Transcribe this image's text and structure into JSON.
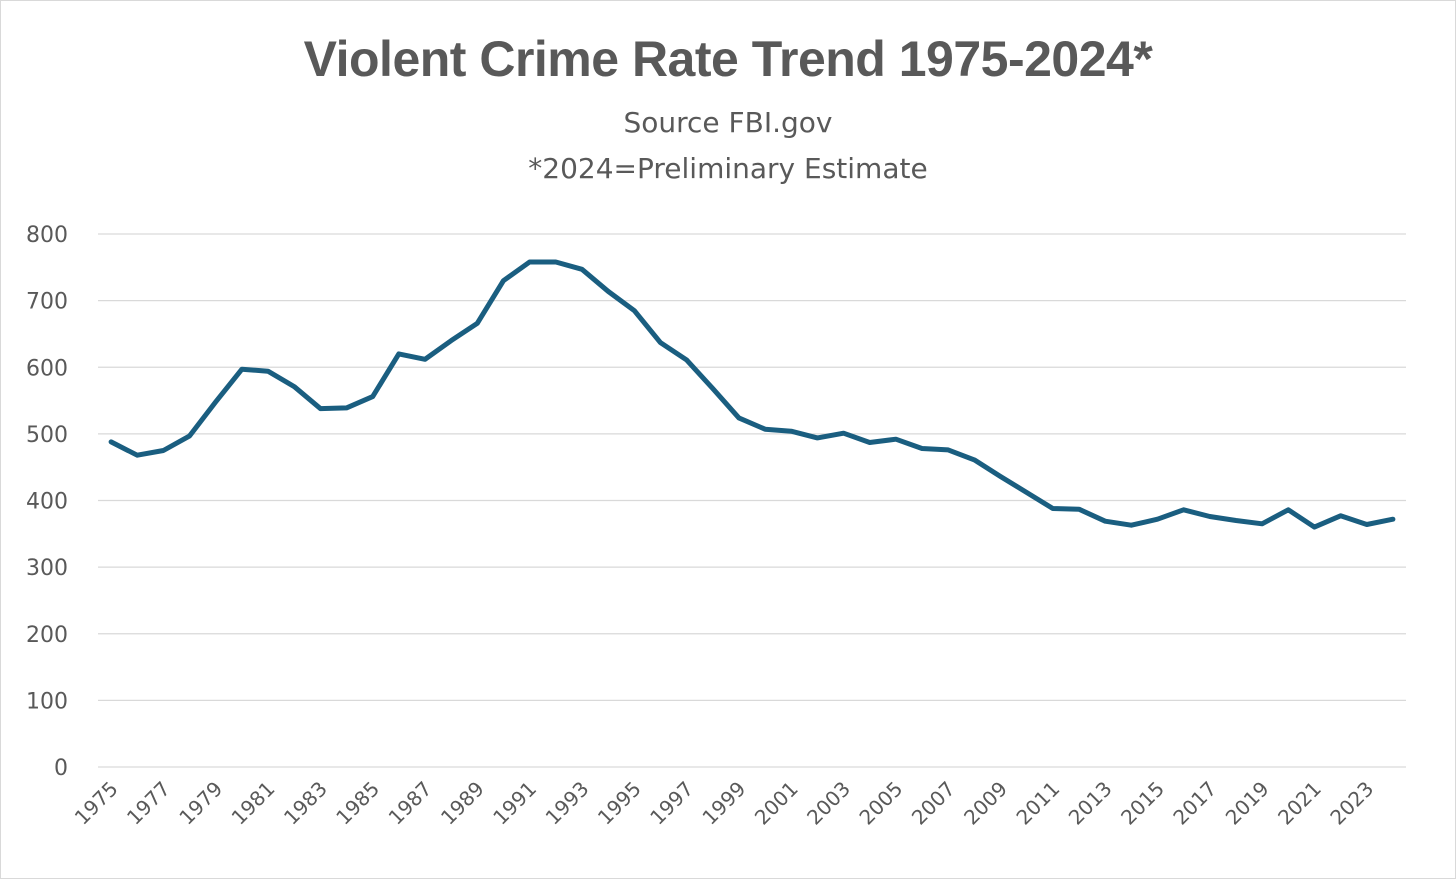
{
  "chart_data": {
    "type": "line",
    "title": "Violent Crime Rate Trend 1975-2024*",
    "subtitle": "Source FBI.gov",
    "note": "*2024=Preliminary Estimate",
    "xlabel": "",
    "ylabel": "",
    "ylim": [
      0,
      800
    ],
    "yticks": [
      0,
      100,
      200,
      300,
      400,
      500,
      600,
      700,
      800
    ],
    "grid": true,
    "line_color": "#1a5e80",
    "x": [
      1975,
      1976,
      1977,
      1978,
      1979,
      1980,
      1981,
      1982,
      1983,
      1984,
      1985,
      1986,
      1987,
      1988,
      1989,
      1990,
      1991,
      1992,
      1993,
      1994,
      1995,
      1996,
      1997,
      1998,
      1999,
      2000,
      2001,
      2002,
      2003,
      2004,
      2005,
      2006,
      2007,
      2008,
      2009,
      2010,
      2011,
      2012,
      2013,
      2014,
      2015,
      2016,
      2017,
      2018,
      2019,
      2020,
      2021,
      2022,
      2023,
      2024
    ],
    "x_tick_labels": [
      "1975",
      "1977",
      "1979",
      "1981",
      "1983",
      "1985",
      "1987",
      "1989",
      "1991",
      "1993",
      "1995",
      "1997",
      "1999",
      "2001",
      "2003",
      "2005",
      "2007",
      "2009",
      "2011",
      "2013",
      "2015",
      "2017",
      "2019",
      "2021",
      "2023"
    ],
    "series": [
      {
        "name": "Violent Crime Rate",
        "values": [
          488,
          468,
          475,
          497,
          548,
          597,
          594,
          571,
          538,
          539,
          556,
          620,
          612,
          640,
          666,
          730,
          758,
          758,
          747,
          714,
          685,
          637,
          611,
          568,
          524,
          507,
          504,
          494,
          501,
          487,
          492,
          478,
          476,
          461,
          436,
          412,
          388,
          387,
          369,
          363,
          372,
          386,
          376,
          370,
          365,
          386,
          360,
          377,
          364,
          372
        ]
      }
    ]
  }
}
